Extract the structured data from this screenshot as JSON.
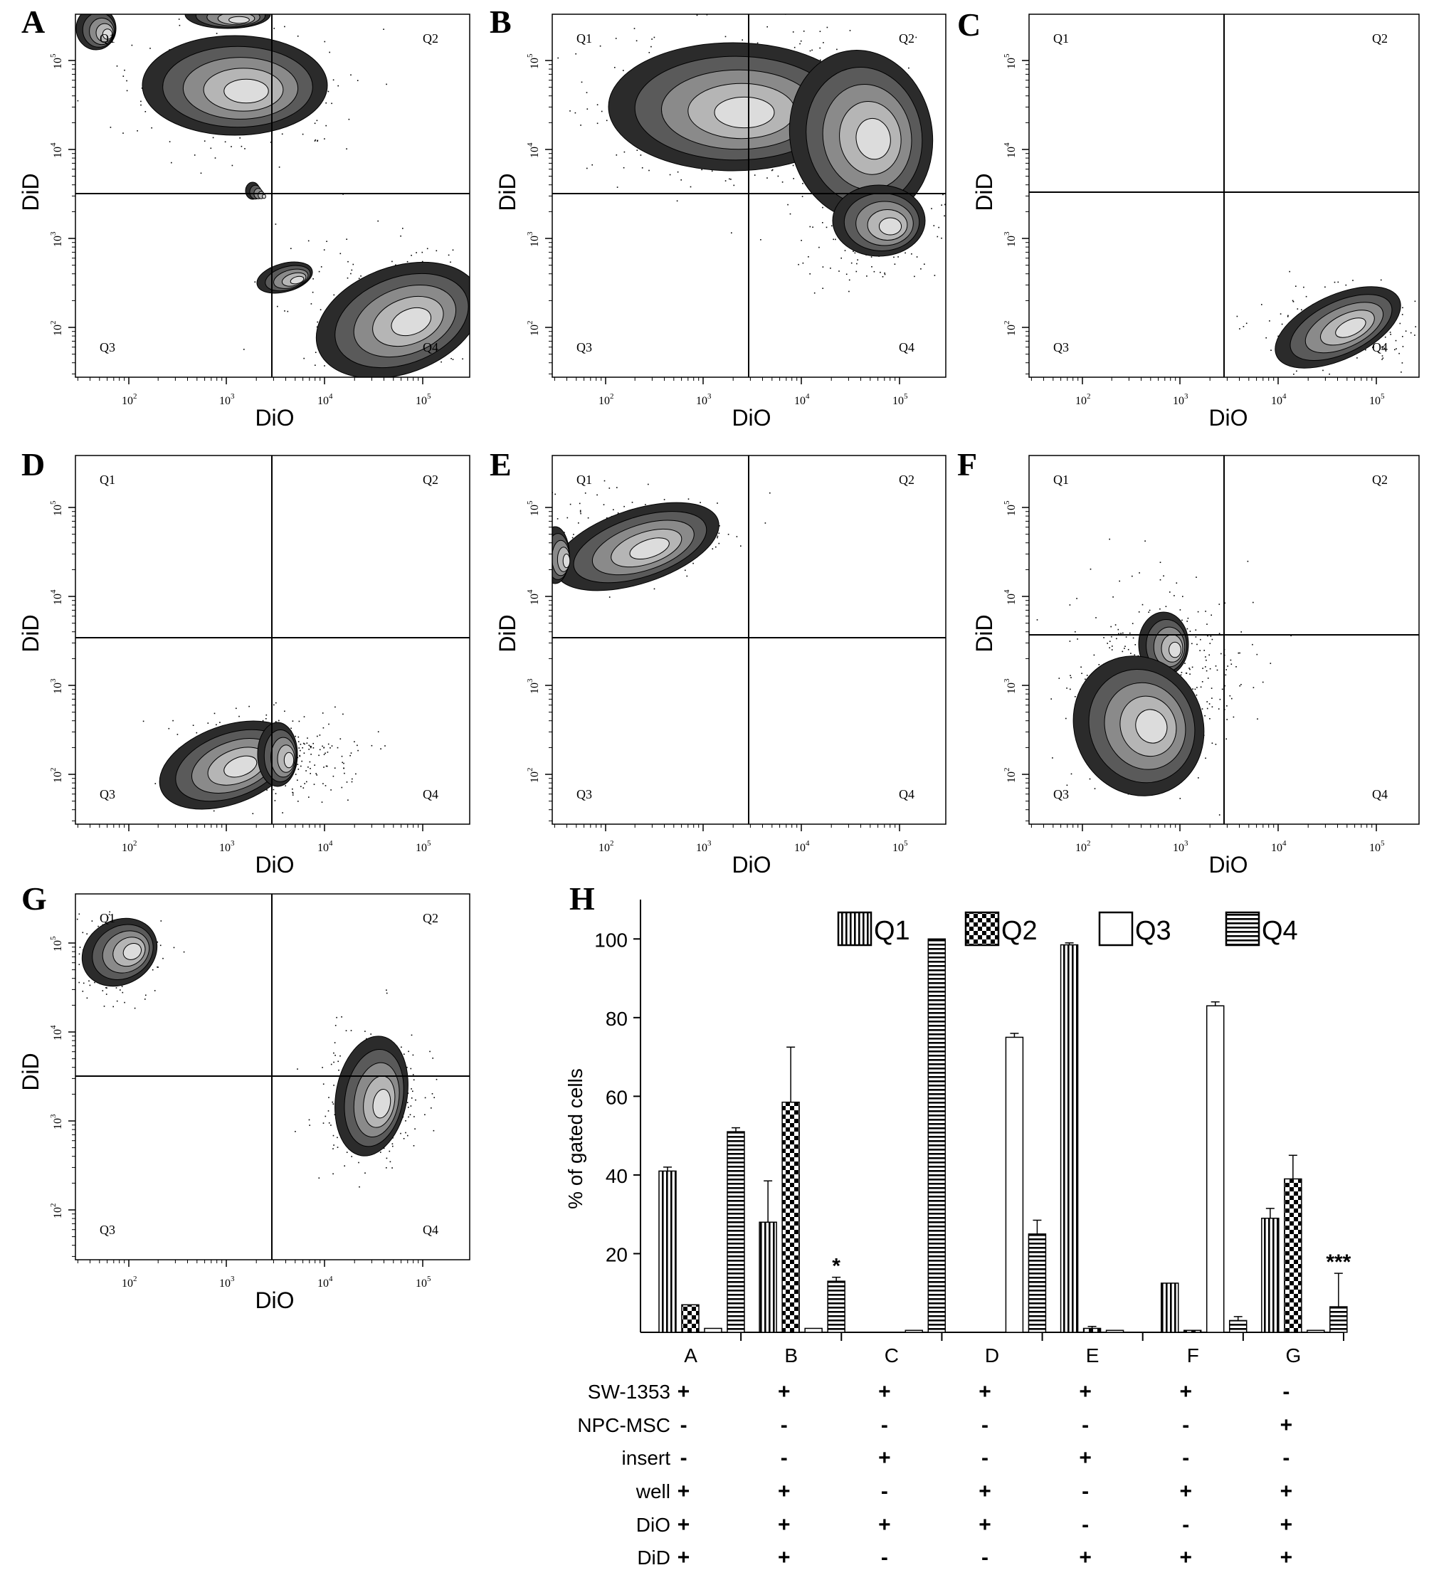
{
  "chart_data": [
    {
      "panel": "A",
      "type": "scatter",
      "xlabel": "DiO",
      "ylabel": "DiD",
      "x_scale": "log",
      "y_scale": "log",
      "x_ticks": [
        "10^2",
        "10^3",
        "10^4",
        "10^5"
      ],
      "y_ticks": [
        "10^2",
        "10^3",
        "10^4",
        "10^5"
      ],
      "quadrants": [
        "Q1",
        "Q2",
        "Q3",
        "Q4"
      ]
    },
    {
      "panel": "B",
      "type": "scatter",
      "xlabel": "DiO",
      "ylabel": "DiD",
      "x_scale": "log",
      "y_scale": "log",
      "x_ticks": [
        "10^2",
        "10^3",
        "10^4",
        "10^5"
      ],
      "y_ticks": [
        "10^2",
        "10^3",
        "10^4",
        "10^5"
      ],
      "quadrants": [
        "Q1",
        "Q2",
        "Q3",
        "Q4"
      ]
    },
    {
      "panel": "C",
      "type": "scatter",
      "xlabel": "DiO",
      "ylabel": "DiD",
      "x_scale": "log",
      "y_scale": "log",
      "x_ticks": [
        "10^2",
        "10^3",
        "10^4",
        "10^5"
      ],
      "y_ticks": [
        "10^2",
        "10^3",
        "10^4",
        "10^5"
      ],
      "quadrants": [
        "Q1",
        "Q2",
        "Q3",
        "Q4"
      ]
    },
    {
      "panel": "D",
      "type": "scatter",
      "xlabel": "DiO",
      "ylabel": "DiD",
      "x_scale": "log",
      "y_scale": "log",
      "x_ticks": [
        "10^2",
        "10^3",
        "10^4",
        "10^5"
      ],
      "y_ticks": [
        "10^2",
        "10^3",
        "10^4",
        "10^5"
      ],
      "quadrants": [
        "Q1",
        "Q2",
        "Q3",
        "Q4"
      ]
    },
    {
      "panel": "E",
      "type": "scatter",
      "xlabel": "DiO",
      "ylabel": "DiD",
      "x_scale": "log",
      "y_scale": "log",
      "x_ticks": [
        "10^2",
        "10^3",
        "10^4",
        "10^5"
      ],
      "y_ticks": [
        "10^2",
        "10^3",
        "10^4",
        "10^5"
      ],
      "quadrants": [
        "Q1",
        "Q2",
        "Q3",
        "Q4"
      ]
    },
    {
      "panel": "F",
      "type": "scatter",
      "xlabel": "DiO",
      "ylabel": "DiD",
      "x_scale": "log",
      "y_scale": "log",
      "x_ticks": [
        "10^2",
        "10^3",
        "10^4",
        "10^5"
      ],
      "y_ticks": [
        "10^2",
        "10^3",
        "10^4",
        "10^5"
      ],
      "quadrants": [
        "Q1",
        "Q2",
        "Q3",
        "Q4"
      ]
    },
    {
      "panel": "G",
      "type": "scatter",
      "xlabel": "DiO",
      "ylabel": "DiD",
      "x_scale": "log",
      "y_scale": "log",
      "x_ticks": [
        "10^2",
        "10^3",
        "10^4",
        "10^5"
      ],
      "y_ticks": [
        "10^2",
        "10^3",
        "10^4",
        "10^5"
      ],
      "quadrants": [
        "Q1",
        "Q2",
        "Q3",
        "Q4"
      ]
    },
    {
      "panel": "H",
      "type": "bar",
      "ylabel": "% of gated cells",
      "ylim": [
        0,
        110
      ],
      "yticks": [
        20,
        40,
        60,
        80,
        100
      ],
      "categories": [
        "A",
        "B",
        "C",
        "D",
        "E",
        "F",
        "G"
      ],
      "series": [
        {
          "name": "Q1",
          "values": [
            41,
            28,
            0,
            0,
            98.5,
            12.5,
            29
          ],
          "errors": [
            1,
            10.5,
            0,
            0,
            0.5,
            0,
            2.5
          ]
        },
        {
          "name": "Q2",
          "values": [
            7,
            58.5,
            0,
            0,
            1,
            0.5,
            39
          ],
          "errors": [
            0,
            14,
            0,
            0,
            0.5,
            0,
            6
          ]
        },
        {
          "name": "Q3",
          "values": [
            1,
            1,
            0.5,
            75,
            0.5,
            83,
            0.5
          ],
          "errors": [
            0,
            0,
            0,
            1,
            0,
            1,
            0
          ]
        },
        {
          "name": "Q4",
          "values": [
            51,
            13,
            100,
            25,
            0,
            3,
            6.5
          ],
          "errors": [
            1,
            1,
            0,
            3.5,
            0,
            1,
            8.5
          ]
        }
      ],
      "annotations": [
        {
          "category": "B",
          "series": "Q4",
          "text": "*"
        },
        {
          "category": "G",
          "series": "Q4",
          "text": "***"
        }
      ],
      "conditions": [
        {
          "label": "SW-1353",
          "values": [
            "+",
            "+",
            "+",
            "+",
            "+",
            "+",
            "-"
          ]
        },
        {
          "label": "NPC-MSC",
          "values": [
            "-",
            "-",
            "-",
            "-",
            "-",
            "-",
            "+"
          ]
        },
        {
          "label": "insert",
          "values": [
            "-",
            "-",
            "+",
            "-",
            "+",
            "-",
            "-"
          ]
        },
        {
          "label": "well",
          "values": [
            "+",
            "+",
            "-",
            "+",
            "-",
            "+",
            "+"
          ]
        },
        {
          "label": "DiO",
          "values": [
            "+",
            "+",
            "+",
            "+",
            "-",
            "-",
            "+"
          ]
        },
        {
          "label": "DiD",
          "values": [
            "+",
            "+",
            "-",
            "-",
            "+",
            "+",
            "+"
          ]
        }
      ]
    }
  ]
}
